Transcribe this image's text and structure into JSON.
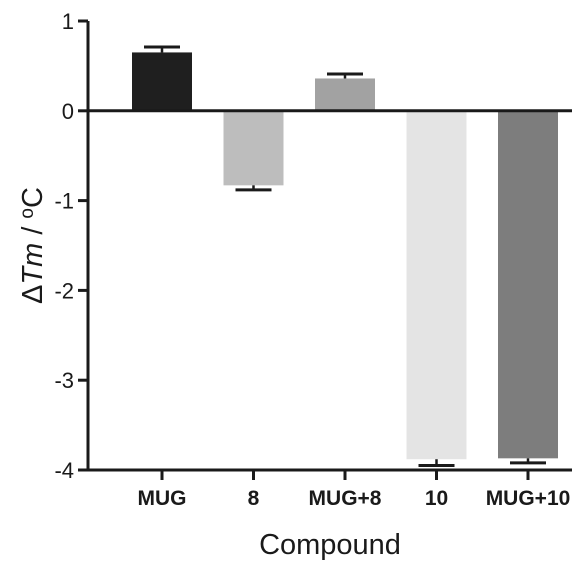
{
  "chart_data": {
    "type": "bar",
    "categories": [
      "MUG",
      "8",
      "MUG+8",
      "10",
      "MUG+10"
    ],
    "values": [
      0.65,
      -0.83,
      0.36,
      -3.88,
      -3.87
    ],
    "errors": [
      0.06,
      0.05,
      0.05,
      0.07,
      0.05
    ],
    "bar_colors": [
      "#1f1f1f",
      "#bdbdbd",
      "#a2a2a2",
      "#e4e4e4",
      "#7d7d7d"
    ],
    "xlabel": "Compound",
    "ylabel_prefix": "Δ",
    "ylabel_var": "Tm",
    "ylabel_sep": " / ",
    "ylabel_sup": "o",
    "ylabel_unit": "C",
    "ylim": [
      -4,
      1
    ],
    "yticks": [
      1,
      0,
      -1,
      -2,
      -3,
      -4
    ],
    "ytick_labels": [
      "1",
      "0",
      "-1",
      "-2",
      "-3",
      "-4"
    ],
    "grid": false,
    "legend": "none"
  }
}
